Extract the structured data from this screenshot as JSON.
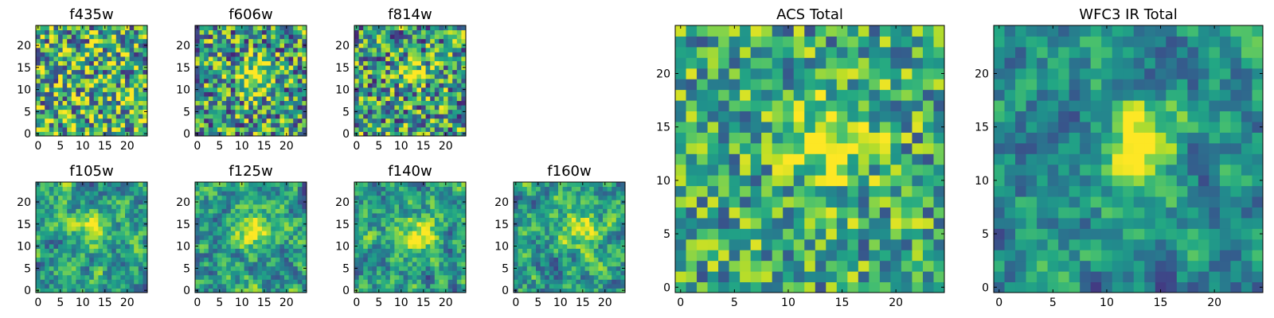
{
  "figure": {
    "background": "#ffffff"
  },
  "chart_data": {
    "type": "heatmap",
    "colormap": "viridis",
    "grid": false,
    "panels": [
      {
        "title": "f435w",
        "xticks": [
          "0",
          "5",
          "10",
          "15",
          "20"
        ],
        "yticks": [
          "0",
          "5",
          "10",
          "15",
          "20"
        ],
        "blob": {
          "cx": 12,
          "cy": 12,
          "amp": 0.0,
          "sx": 3,
          "sy": 3
        },
        "seed": 11,
        "smooth": 0,
        "noise": 0.5,
        "base": 0.65
      },
      {
        "title": "f606w",
        "xticks": [
          "0",
          "5",
          "10",
          "15",
          "20"
        ],
        "yticks": [
          "0",
          "5",
          "10",
          "15",
          "20"
        ],
        "blob": {
          "cx": 13,
          "cy": 13,
          "amp": 0.5,
          "sx": 2,
          "sy": 3
        },
        "seed": 23,
        "smooth": 0,
        "noise": 0.45,
        "base": 0.55
      },
      {
        "title": "f814w",
        "xticks": [
          "0",
          "5",
          "10",
          "15",
          "20"
        ],
        "yticks": [
          "0",
          "5",
          "10",
          "15",
          "20"
        ],
        "blob": {
          "cx": 13,
          "cy": 14,
          "amp": 0.45,
          "sx": 2,
          "sy": 2
        },
        "seed": 37,
        "smooth": 0,
        "noise": 0.45,
        "base": 0.55
      },
      {
        "title": "f105w",
        "xticks": [
          "0",
          "5",
          "10",
          "15",
          "20"
        ],
        "yticks": [
          "0",
          "5",
          "10",
          "15",
          "20"
        ],
        "blob": {
          "cx": 13,
          "cy": 14,
          "amp": 0.45,
          "sx": 2.5,
          "sy": 2.5
        },
        "seed": 41,
        "smooth": 1,
        "noise": 0.5,
        "base": 0.55
      },
      {
        "title": "f125w",
        "xticks": [
          "0",
          "5",
          "10",
          "15",
          "20"
        ],
        "yticks": [
          "0",
          "5",
          "10",
          "15",
          "20"
        ],
        "blob": {
          "cx": 13,
          "cy": 14,
          "amp": 0.4,
          "sx": 3,
          "sy": 3
        },
        "seed": 53,
        "smooth": 1,
        "noise": 0.5,
        "base": 0.55
      },
      {
        "title": "f140w",
        "xticks": [
          "0",
          "5",
          "10",
          "15",
          "20"
        ],
        "yticks": [
          "0",
          "5",
          "10",
          "15",
          "20"
        ],
        "blob": {
          "cx": 14,
          "cy": 13,
          "amp": 0.45,
          "sx": 2.5,
          "sy": 3
        },
        "seed": 67,
        "smooth": 1,
        "noise": 0.5,
        "base": 0.55
      },
      {
        "title": "f160w",
        "xticks": [
          "0",
          "5",
          "10",
          "15",
          "20"
        ],
        "yticks": [
          "0",
          "5",
          "10",
          "15",
          "20"
        ],
        "blob": {
          "cx": 14,
          "cy": 14,
          "amp": 0.45,
          "sx": 2.5,
          "sy": 3
        },
        "seed": 79,
        "smooth": 1,
        "noise": 0.5,
        "base": 0.55
      },
      {
        "title": "ACS Total",
        "xticks": [
          "0",
          "5",
          "10",
          "15",
          "20"
        ],
        "yticks": [
          "0",
          "5",
          "10",
          "15",
          "20"
        ],
        "blob": {
          "cx": 14,
          "cy": 14,
          "amp": 0.4,
          "sx": 3,
          "sy": 3
        },
        "seed": 97,
        "smooth": 0,
        "noise": 0.35,
        "base": 0.6
      },
      {
        "title": "WFC3 IR Total",
        "xticks": [
          "0",
          "5",
          "10",
          "15",
          "20"
        ],
        "yticks": [
          "0",
          "5",
          "10",
          "15",
          "20"
        ],
        "blob": {
          "cx": 13,
          "cy": 14,
          "amp": 0.5,
          "sx": 2.5,
          "sy": 3
        },
        "seed": 101,
        "smooth": 1,
        "noise": 0.45,
        "base": 0.5
      }
    ],
    "grid_size": 25,
    "xlim": [
      0,
      24
    ],
    "ylim": [
      0,
      24
    ]
  }
}
